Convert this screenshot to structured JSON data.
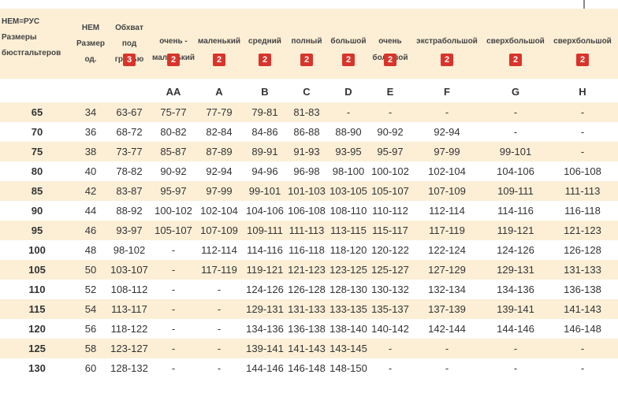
{
  "headers": [
    {
      "label": "НЕМ=РУС\nРазмеры\nбюстгальтеров",
      "badge": ""
    },
    {
      "label": "НЕМ\nРазмер\nод.",
      "badge": ""
    },
    {
      "label": "Обхват\nпод\nгрудью",
      "badge": "3"
    },
    {
      "label": "очень -\nмаленький",
      "badge": "2"
    },
    {
      "label": "маленький",
      "badge": "2"
    },
    {
      "label": "средний",
      "badge": "2"
    },
    {
      "label": "полный",
      "badge": "2"
    },
    {
      "label": "большой",
      "badge": "2"
    },
    {
      "label": "очень\nбольшой",
      "badge": "2"
    },
    {
      "label": "экстрабольшой",
      "badge": "2"
    },
    {
      "label": "сверхбольшой",
      "badge": "2"
    },
    {
      "label": "сверхбольшой",
      "badge": "2"
    }
  ],
  "cups": [
    "",
    "",
    "",
    "AA",
    "A",
    "B",
    "C",
    "D",
    "E",
    "F",
    "G",
    "H"
  ],
  "rows": [
    [
      "65",
      "34",
      "63-67",
      "75-77",
      "77-79",
      "79-81",
      "81-83",
      "-",
      "-",
      "-",
      "-",
      "-"
    ],
    [
      "70",
      "36",
      "68-72",
      "80-82",
      "82-84",
      "84-86",
      "86-88",
      "88-90",
      "90-92",
      "92-94",
      "-",
      "-"
    ],
    [
      "75",
      "38",
      "73-77",
      "85-87",
      "87-89",
      "89-91",
      "91-93",
      "93-95",
      "95-97",
      "97-99",
      "99-101",
      "-"
    ],
    [
      "80",
      "40",
      "78-82",
      "90-92",
      "92-94",
      "94-96",
      "96-98",
      "98-100",
      "100-102",
      "102-104",
      "104-106",
      "106-108"
    ],
    [
      "85",
      "42",
      "83-87",
      "95-97",
      "97-99",
      "99-101",
      "101-103",
      "103-105",
      "105-107",
      "107-109",
      "109-111",
      "111-113"
    ],
    [
      "90",
      "44",
      "88-92",
      "100-102",
      "102-104",
      "104-106",
      "106-108",
      "108-110",
      "110-112",
      "112-114",
      "114-116",
      "116-118"
    ],
    [
      "95",
      "46",
      "93-97",
      "105-107",
      "107-109",
      "109-111",
      "111-113",
      "113-115",
      "115-117",
      "117-119",
      "119-121",
      "121-123"
    ],
    [
      "100",
      "48",
      "98-102",
      "-",
      "112-114",
      "114-116",
      "116-118",
      "118-120",
      "120-122",
      "122-124",
      "124-126",
      "126-128"
    ],
    [
      "105",
      "50",
      "103-107",
      "-",
      "117-119",
      "119-121",
      "121-123",
      "123-125",
      "125-127",
      "127-129",
      "129-131",
      "131-133"
    ],
    [
      "110",
      "52",
      "108-112",
      "-",
      "-",
      "124-126",
      "126-128",
      "128-130",
      "130-132",
      "132-134",
      "134-136",
      "136-138"
    ],
    [
      "115",
      "54",
      "113-117",
      "-",
      "-",
      "129-131",
      "131-133",
      "133-135",
      "135-137",
      "137-139",
      "139-141",
      "141-143"
    ],
    [
      "120",
      "56",
      "118-122",
      "-",
      "-",
      "134-136",
      "136-138",
      "138-140",
      "140-142",
      "142-144",
      "144-146",
      "146-148"
    ],
    [
      "125",
      "58",
      "123-127",
      "-",
      "-",
      "139-141",
      "141-143",
      "143-145",
      "-",
      "-",
      "-",
      "-"
    ],
    [
      "130",
      "60",
      "128-132",
      "-",
      "-",
      "144-146",
      "146-148",
      "148-150",
      "-",
      "-",
      "-",
      "-"
    ]
  ]
}
